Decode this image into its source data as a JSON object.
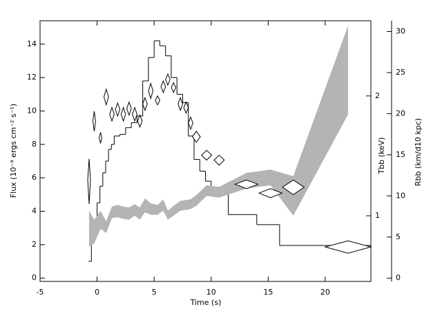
{
  "chart_data": {
    "type": "combo",
    "x_label": "Time (s)",
    "y_label": "Flux (10⁻⁹ ergs cm⁻² s⁻¹)",
    "y2_label": "Tbb (keV)",
    "y3_label": "Rbb (km/d10 kpc)",
    "xlim": [
      -5,
      24
    ],
    "xticks": [
      -5,
      0,
      5,
      10,
      15,
      20
    ],
    "ylim": [
      -0.2,
      15.4
    ],
    "yticks": [
      0,
      2,
      4,
      6,
      8,
      10,
      12,
      14
    ],
    "y2lim": [
      0.684,
      3.09
    ],
    "y2ticks": [
      1,
      2
    ],
    "y2scale": "log",
    "y3lim": [
      -0.4,
      31.3
    ],
    "y3ticks": [
      0,
      5,
      10,
      15,
      20,
      25,
      30
    ],
    "series": [
      {
        "type": "step",
        "axis": "y",
        "color": "#000000",
        "bins": [
          -0.75,
          -0.5,
          -0.25,
          0,
          0.25,
          0.5,
          0.75,
          1.0,
          1.25,
          1.5,
          2,
          2.5,
          3,
          3.5,
          4,
          4.5,
          5,
          5.5,
          6,
          6.5,
          7,
          7.5,
          8,
          8.5,
          9,
          9.5,
          10,
          11.5,
          14,
          16,
          24
        ],
        "values": [
          1.0,
          2.3,
          2.8,
          4.5,
          5.5,
          6.3,
          7.0,
          7.7,
          8.0,
          8.5,
          8.6,
          9.0,
          9.3,
          9.7,
          11.8,
          13.2,
          14.2,
          13.9,
          13.3,
          12.0,
          11.0,
          10.5,
          8.5,
          7.1,
          6.4,
          5.8,
          5.0,
          3.8,
          3.2,
          1.95
        ]
      },
      {
        "type": "band",
        "axis": "y3",
        "color": "#b4b4b4",
        "x": [
          -0.7,
          -0.25,
          0.3,
          0.8,
          1.3,
          1.8,
          2.3,
          2.8,
          3.3,
          3.75,
          4.2,
          4.7,
          5.3,
          5.8,
          6.2,
          6.7,
          7.3,
          7.8,
          8.2,
          8.7,
          9.6,
          10.7,
          13.1,
          15.2,
          17.2,
          22.0
        ],
        "upper": [
          8.2,
          7.1,
          8.2,
          6.9,
          8.7,
          8.9,
          8.7,
          8.6,
          9.0,
          8.6,
          9.7,
          9.1,
          8.9,
          9.6,
          8.2,
          8.8,
          9.4,
          9.5,
          9.6,
          10.1,
          11.3,
          11.1,
          12.8,
          13.2,
          12.4,
          30.7
        ],
        "lower": [
          3.8,
          4.2,
          6.0,
          5.5,
          7.3,
          7.4,
          7.2,
          7.1,
          7.6,
          7.1,
          8.0,
          7.7,
          7.7,
          8.2,
          7.1,
          7.6,
          8.2,
          8.3,
          8.4,
          8.8,
          10.0,
          9.8,
          10.9,
          11.3,
          7.6,
          19.9
        ]
      },
      {
        "type": "diamond",
        "axis": "y2",
        "color": "#000000",
        "x": [
          -0.7,
          -0.25,
          0.3,
          0.8,
          1.3,
          1.8,
          2.3,
          2.8,
          3.3,
          3.75,
          4.2,
          4.7,
          5.3,
          5.8,
          6.2,
          6.7,
          7.3,
          7.8,
          8.2,
          8.7,
          9.6,
          10.7,
          13.1,
          15.2,
          17.2,
          22.0
        ],
        "xerr": [
          0.12,
          0.12,
          0.12,
          0.2,
          0.2,
          0.2,
          0.2,
          0.2,
          0.2,
          0.2,
          0.2,
          0.2,
          0.2,
          0.2,
          0.2,
          0.2,
          0.2,
          0.2,
          0.2,
          0.35,
          0.45,
          0.45,
          1.0,
          1.0,
          0.95,
          2.0
        ],
        "values": [
          1.23,
          1.73,
          1.57,
          1.99,
          1.8,
          1.85,
          1.8,
          1.86,
          1.8,
          1.73,
          1.91,
          2.06,
          1.95,
          2.11,
          2.2,
          2.1,
          1.91,
          1.87,
          1.71,
          1.58,
          1.42,
          1.38,
          1.2,
          1.14,
          1.18,
          0.835
        ],
        "yerr": [
          0.16,
          0.1,
          0.05,
          0.09,
          0.07,
          0.07,
          0.07,
          0.07,
          0.07,
          0.06,
          0.07,
          0.09,
          0.05,
          0.07,
          0.07,
          0.06,
          0.07,
          0.06,
          0.06,
          0.05,
          0.04,
          0.04,
          0.03,
          0.03,
          0.05,
          0.03
        ]
      }
    ]
  }
}
